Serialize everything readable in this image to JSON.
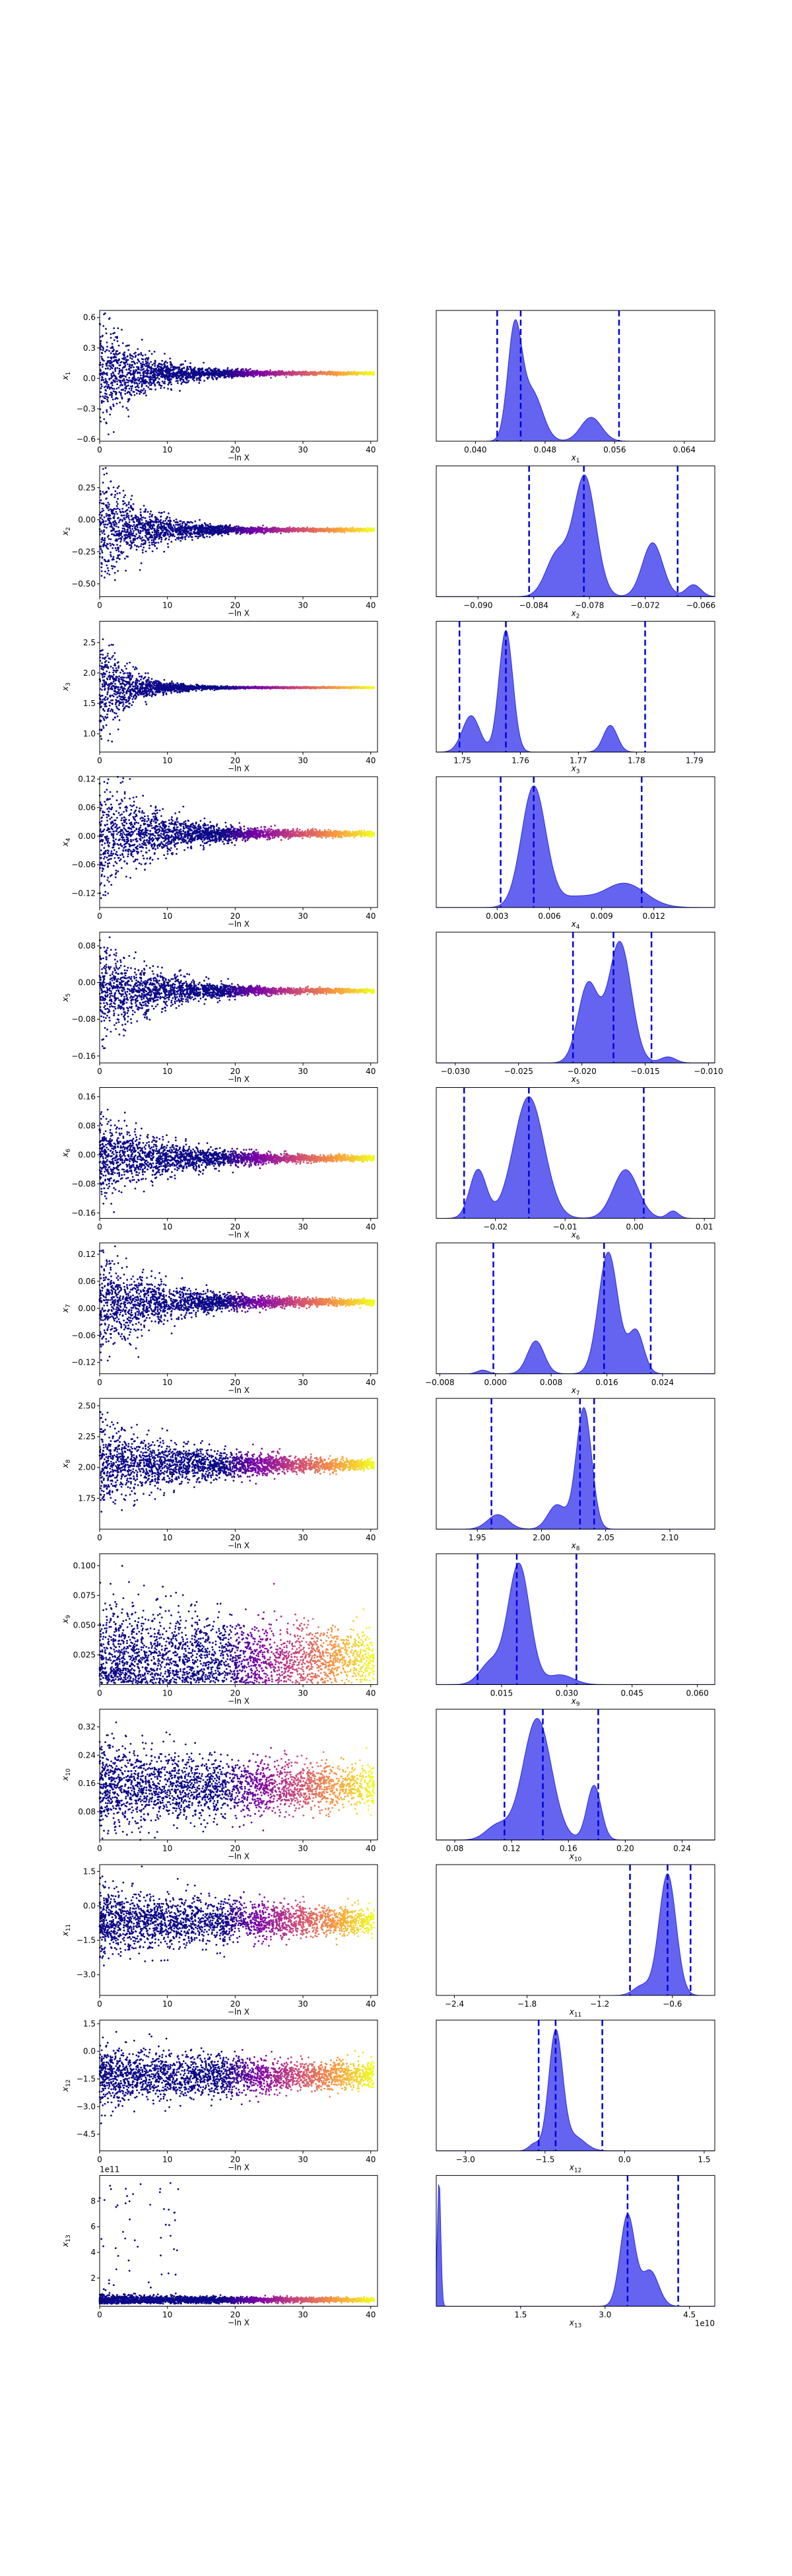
{
  "chart_data": [
    {
      "type": "scatter",
      "ylabel": "x_1",
      "xlabel": "−ln X",
      "xlim": [
        0,
        41
      ],
      "ylim": [
        -0.62,
        0.67
      ],
      "xticks": [
        "0",
        "10",
        "20",
        "30",
        "40"
      ],
      "yticks": [
        {
          "v": 0.6,
          "t": "0.6"
        },
        {
          "v": 0.3,
          "t": "0.3"
        },
        {
          "v": 0.0,
          "t": "0.0"
        },
        {
          "v": -0.3,
          "t": "−0.3"
        },
        {
          "v": -0.6,
          "t": "−0.6"
        }
      ],
      "center": 0.05,
      "spread0": 0.5,
      "decay": 6,
      "noise": 0.012
    },
    {
      "type": "scatter",
      "ylabel": "x_2",
      "xlabel": "−ln X",
      "xlim": [
        0,
        41
      ],
      "ylim": [
        -0.6,
        0.42
      ],
      "xticks": [
        "0",
        "10",
        "20",
        "30",
        "40"
      ],
      "yticks": [
        {
          "v": 0.25,
          "t": "0.25"
        },
        {
          "v": 0.0,
          "t": "0.00"
        },
        {
          "v": -0.25,
          "t": "−0.25"
        },
        {
          "v": -0.5,
          "t": "−0.50"
        }
      ],
      "center": -0.08,
      "spread0": 0.42,
      "decay": 6,
      "noise": 0.01
    },
    {
      "type": "scatter",
      "ylabel": "x_3",
      "xlabel": "−ln X",
      "xlim": [
        0,
        41
      ],
      "ylim": [
        0.7,
        2.85
      ],
      "xticks": [
        "0",
        "10",
        "20",
        "30",
        "40"
      ],
      "yticks": [
        {
          "v": 2.5,
          "t": "2.5"
        },
        {
          "v": 2.0,
          "t": "2.0"
        },
        {
          "v": 1.5,
          "t": "1.5"
        },
        {
          "v": 1.0,
          "t": "1.0"
        }
      ],
      "center": 1.76,
      "spread0": 0.8,
      "decay": 4,
      "noise": 0.01
    },
    {
      "type": "scatter",
      "ylabel": "x_4",
      "xlabel": "−ln X",
      "xlim": [
        0,
        41
      ],
      "ylim": [
        -0.15,
        0.125
      ],
      "xticks": [
        "0",
        "10",
        "20",
        "30",
        "40"
      ],
      "yticks": [
        {
          "v": 0.12,
          "t": "0.12"
        },
        {
          "v": 0.06,
          "t": "0.06"
        },
        {
          "v": 0.0,
          "t": "0.00"
        },
        {
          "v": -0.06,
          "t": "−0.06"
        },
        {
          "v": -0.12,
          "t": "−0.12"
        }
      ],
      "center": 0.005,
      "spread0": 0.11,
      "decay": 8,
      "noise": 0.004
    },
    {
      "type": "scatter",
      "ylabel": "x_5",
      "xlabel": "−ln X",
      "xlim": [
        0,
        41
      ],
      "ylim": [
        -0.175,
        0.11
      ],
      "xticks": [
        "0",
        "10",
        "20",
        "30",
        "40"
      ],
      "yticks": [
        {
          "v": 0.08,
          "t": "0.08"
        },
        {
          "v": 0.0,
          "t": "0.00"
        },
        {
          "v": -0.08,
          "t": "−0.08"
        },
        {
          "v": -0.16,
          "t": "−0.16"
        }
      ],
      "center": -0.018,
      "spread0": 0.1,
      "decay": 8,
      "noise": 0.003
    },
    {
      "type": "scatter",
      "ylabel": "x_6",
      "xlabel": "−ln X",
      "xlim": [
        0,
        41
      ],
      "ylim": [
        -0.175,
        0.185
      ],
      "xticks": [
        "0",
        "10",
        "20",
        "30",
        "40"
      ],
      "yticks": [
        {
          "v": 0.16,
          "t": "0.16"
        },
        {
          "v": 0.08,
          "t": "0.08"
        },
        {
          "v": 0.0,
          "t": "0.00"
        },
        {
          "v": -0.08,
          "t": "−0.08"
        },
        {
          "v": -0.16,
          "t": "−0.16"
        }
      ],
      "center": -0.01,
      "spread0": 0.1,
      "decay": 10,
      "noise": 0.005
    },
    {
      "type": "scatter",
      "ylabel": "x_7",
      "xlabel": "−ln X",
      "xlim": [
        0,
        41
      ],
      "ylim": [
        -0.145,
        0.145
      ],
      "xticks": [
        "0",
        "10",
        "20",
        "30",
        "40"
      ],
      "yticks": [
        {
          "v": 0.12,
          "t": "0.12"
        },
        {
          "v": 0.06,
          "t": "0.06"
        },
        {
          "v": 0.0,
          "t": "0.00"
        },
        {
          "v": -0.06,
          "t": "−0.06"
        },
        {
          "v": -0.12,
          "t": "−0.12"
        }
      ],
      "center": 0.014,
      "spread0": 0.1,
      "decay": 9,
      "noise": 0.005
    },
    {
      "type": "scatter",
      "ylabel": "x_8",
      "xlabel": "−ln X",
      "xlim": [
        0,
        41
      ],
      "ylim": [
        1.5,
        2.56
      ],
      "xticks": [
        "0",
        "10",
        "20",
        "30",
        "40"
      ],
      "yticks": [
        {
          "v": 2.5,
          "t": "2.50"
        },
        {
          "v": 2.25,
          "t": "2.25"
        },
        {
          "v": 2.0,
          "t": "2.00"
        },
        {
          "v": 1.75,
          "t": "1.75"
        }
      ],
      "center": 2.02,
      "spread0": 0.3,
      "decay": 14,
      "noise": 0.02
    },
    {
      "type": "scatter",
      "ylabel": "x_9",
      "xlabel": "−ln X",
      "xlim": [
        0,
        41
      ],
      "ylim": [
        0.0,
        0.11
      ],
      "xticks": [
        "0",
        "10",
        "20",
        "30",
        "40"
      ],
      "yticks": [
        {
          "v": 0.1,
          "t": "0.100"
        },
        {
          "v": 0.075,
          "t": "0.075"
        },
        {
          "v": 0.05,
          "t": "0.050"
        },
        {
          "v": 0.025,
          "t": "0.025"
        }
      ],
      "center": 0.022,
      "spread0": 0.04,
      "decay": 40,
      "noise": 0.006,
      "lowerbound": 0.001
    },
    {
      "type": "scatter",
      "ylabel": "x_10",
      "xlabel": "−ln X",
      "xlim": [
        0,
        41
      ],
      "ylim": [
        0.0,
        0.37
      ],
      "xticks": [
        "0",
        "10",
        "20",
        "30",
        "40"
      ],
      "yticks": [
        {
          "v": 0.32,
          "t": "0.32"
        },
        {
          "v": 0.24,
          "t": "0.24"
        },
        {
          "v": 0.16,
          "t": "0.16"
        },
        {
          "v": 0.08,
          "t": "0.08"
        }
      ],
      "center": 0.15,
      "spread0": 0.09,
      "decay": 40,
      "noise": 0.02
    },
    {
      "type": "scatter",
      "ylabel": "x_11",
      "xlabel": "−ln X",
      "xlim": [
        0,
        41
      ],
      "ylim": [
        -3.9,
        1.8
      ],
      "xticks": [
        "0",
        "10",
        "20",
        "30",
        "40"
      ],
      "yticks": [
        {
          "v": 1.5,
          "t": "1.5"
        },
        {
          "v": 0.0,
          "t": "0.0"
        },
        {
          "v": -1.5,
          "t": "−1.5"
        },
        {
          "v": -3.0,
          "t": "−3.0"
        }
      ],
      "center": -0.65,
      "spread0": 1.2,
      "decay": 40,
      "noise": 0.08
    },
    {
      "type": "scatter",
      "ylabel": "x_12",
      "xlabel": "−ln X",
      "xlim": [
        0,
        41
      ],
      "ylim": [
        -5.4,
        1.7
      ],
      "xticks": [
        "0",
        "10",
        "20",
        "30",
        "40"
      ],
      "yticks": [
        {
          "v": 1.5,
          "t": "1.5"
        },
        {
          "v": 0.0,
          "t": "0.0"
        },
        {
          "v": -1.5,
          "t": "−1.5"
        },
        {
          "v": -3.0,
          "t": "−3.0"
        },
        {
          "v": -4.5,
          "t": "−4.5"
        }
      ],
      "center": -1.3,
      "spread0": 1.3,
      "decay": 40,
      "noise": 0.15
    },
    {
      "type": "scatter",
      "ylabel": "x_13",
      "xlabel": "−ln X",
      "xlim": [
        0,
        41
      ],
      "ylim": [
        -0.2,
        10.0
      ],
      "xticks": [
        "0",
        "10",
        "20",
        "30",
        "40"
      ],
      "yticks": [
        {
          "v": 8,
          "t": "8"
        },
        {
          "v": 6,
          "t": "6"
        },
        {
          "v": 4,
          "t": "4"
        },
        {
          "v": 2,
          "t": "2"
        }
      ],
      "offset": "1e11",
      "center": 0.3,
      "spread0": 0.3,
      "decay": 40,
      "noise": 0.03,
      "lowerbound": 0.0,
      "outliers": true
    }
  ],
  "posterior_data": [
    {
      "type": "area",
      "xlabel": "x_1",
      "xlim": [
        0.0355,
        0.0675
      ],
      "xticks": [
        {
          "v": 0.04,
          "t": "0.040"
        },
        {
          "v": 0.048,
          "t": "0.048"
        },
        {
          "v": 0.056,
          "t": "0.056"
        },
        {
          "v": 0.064,
          "t": "0.064"
        }
      ],
      "vlines": [
        0.0425,
        0.0452,
        0.0565
      ],
      "peaks": [
        [
          0.0445,
          1.0,
          0.0008
        ],
        [
          0.0465,
          0.45,
          0.0012
        ],
        [
          0.0533,
          0.22,
          0.0012
        ]
      ]
    },
    {
      "type": "area",
      "xlabel": "x_2",
      "xlim": [
        -0.0945,
        -0.0645
      ],
      "xticks": [
        {
          "v": -0.09,
          "t": "−0.090"
        },
        {
          "v": -0.084,
          "t": "−0.084"
        },
        {
          "v": -0.078,
          "t": "−0.078"
        },
        {
          "v": -0.072,
          "t": "−0.072"
        },
        {
          "v": -0.066,
          "t": "−0.066"
        }
      ],
      "vlines": [
        -0.0845,
        -0.0786,
        -0.0685
      ],
      "peaks": [
        [
          -0.0785,
          1.0,
          0.0012
        ],
        [
          -0.0815,
          0.35,
          0.0012
        ],
        [
          -0.0712,
          0.45,
          0.0011
        ],
        [
          -0.0668,
          0.1,
          0.0008
        ]
      ]
    },
    {
      "type": "area",
      "xlabel": "x_3",
      "xlim": [
        1.7455,
        1.7935
      ],
      "xticks": [
        {
          "v": 1.75,
          "t": "1.75"
        },
        {
          "v": 1.76,
          "t": "1.76"
        },
        {
          "v": 1.77,
          "t": "1.77"
        },
        {
          "v": 1.78,
          "t": "1.78"
        },
        {
          "v": 1.79,
          "t": "1.79"
        }
      ],
      "vlines": [
        1.7495,
        1.7575,
        1.7815
      ],
      "peaks": [
        [
          1.7575,
          1.0,
          0.0012
        ],
        [
          1.7515,
          0.3,
          0.0015
        ],
        [
          1.7755,
          0.22,
          0.0012
        ]
      ]
    },
    {
      "type": "area",
      "xlabel": "x_4",
      "xlim": [
        -0.0005,
        0.0155
      ],
      "xticks": [
        {
          "v": 0.003,
          "t": "0.003"
        },
        {
          "v": 0.006,
          "t": "0.006"
        },
        {
          "v": 0.009,
          "t": "0.009"
        },
        {
          "v": 0.012,
          "t": "0.012"
        }
      ],
      "vlines": [
        0.0032,
        0.0051,
        0.0113
      ],
      "peaks": [
        [
          0.0051,
          1.0,
          0.0007
        ],
        [
          0.0103,
          0.2,
          0.0012
        ],
        [
          0.0074,
          0.08,
          0.001
        ]
      ]
    },
    {
      "type": "area",
      "xlabel": "x_5",
      "xlim": [
        -0.0315,
        -0.0095
      ],
      "xticks": [
        {
          "v": -0.03,
          "t": "−0.030"
        },
        {
          "v": -0.025,
          "t": "−0.025"
        },
        {
          "v": -0.02,
          "t": "−0.020"
        },
        {
          "v": -0.015,
          "t": "−0.015"
        },
        {
          "v": -0.01,
          "t": "−0.010"
        }
      ],
      "vlines": [
        -0.0207,
        -0.0175,
        -0.0145
      ],
      "peaks": [
        [
          -0.017,
          1.0,
          0.0009
        ],
        [
          -0.0195,
          0.65,
          0.0008
        ],
        [
          -0.0132,
          0.05,
          0.0006
        ]
      ]
    },
    {
      "type": "area",
      "xlabel": "x_6",
      "xlim": [
        -0.0285,
        0.0115
      ],
      "xticks": [
        {
          "v": -0.02,
          "t": "−0.02"
        },
        {
          "v": -0.01,
          "t": "−0.01"
        },
        {
          "v": 0.0,
          "t": "0.00"
        },
        {
          "v": 0.01,
          "t": "0.01"
        }
      ],
      "vlines": [
        -0.0245,
        -0.0152,
        0.0013
      ],
      "peaks": [
        [
          -0.0152,
          1.0,
          0.0022
        ],
        [
          -0.0225,
          0.4,
          0.0012
        ],
        [
          -0.0013,
          0.4,
          0.0018
        ],
        [
          0.0055,
          0.06,
          0.0008
        ]
      ]
    },
    {
      "type": "area",
      "xlabel": "x_7",
      "xlim": [
        -0.0085,
        0.0315
      ],
      "xticks": [
        {
          "v": -0.008,
          "t": "−0.008"
        },
        {
          "v": 0.0,
          "t": "0.000"
        },
        {
          "v": 0.008,
          "t": "0.008"
        },
        {
          "v": 0.016,
          "t": "0.016"
        },
        {
          "v": 0.024,
          "t": "0.024"
        }
      ],
      "vlines": [
        -0.0003,
        0.0156,
        0.0223
      ],
      "peaks": [
        [
          0.0162,
          1.0,
          0.0014
        ],
        [
          0.0058,
          0.27,
          0.0012
        ],
        [
          0.0202,
          0.35,
          0.0011
        ],
        [
          -0.0018,
          0.03,
          0.0008
        ]
      ]
    },
    {
      "type": "area",
      "xlabel": "x_8",
      "xlim": [
        1.918,
        2.135
      ],
      "xticks": [
        {
          "v": 1.95,
          "t": "1.95"
        },
        {
          "v": 2.0,
          "t": "2.00"
        },
        {
          "v": 2.05,
          "t": "2.05"
        },
        {
          "v": 2.1,
          "t": "2.10"
        }
      ],
      "vlines": [
        1.961,
        2.03,
        2.041
      ],
      "peaks": [
        [
          2.033,
          1.0,
          0.006
        ],
        [
          1.966,
          0.12,
          0.008
        ],
        [
          2.012,
          0.2,
          0.007
        ]
      ]
    },
    {
      "type": "area",
      "xlabel": "x_9",
      "xlim": [
        0.0,
        0.064
      ],
      "xticks": [
        {
          "v": 0.015,
          "t": "0.015"
        },
        {
          "v": 0.03,
          "t": "0.030"
        },
        {
          "v": 0.045,
          "t": "0.045"
        },
        {
          "v": 0.06,
          "t": "0.060"
        }
      ],
      "vlines": [
        0.0095,
        0.0185,
        0.0322
      ],
      "peaks": [
        [
          0.019,
          1.0,
          0.0025
        ],
        [
          0.0125,
          0.18,
          0.0025
        ],
        [
          0.0285,
          0.08,
          0.003
        ]
      ]
    },
    {
      "type": "area",
      "xlabel": "x_10",
      "xlim": [
        0.067,
        0.263
      ],
      "xticks": [
        {
          "v": 0.08,
          "t": "0.08"
        },
        {
          "v": 0.12,
          "t": "0.12"
        },
        {
          "v": 0.16,
          "t": "0.16"
        },
        {
          "v": 0.2,
          "t": "0.20"
        },
        {
          "v": 0.24,
          "t": "0.24"
        }
      ],
      "vlines": [
        0.115,
        0.142,
        0.181
      ],
      "peaks": [
        [
          0.138,
          1.0,
          0.01
        ],
        [
          0.178,
          0.45,
          0.005
        ],
        [
          0.11,
          0.12,
          0.008
        ]
      ]
    },
    {
      "type": "area",
      "xlabel": "x_11",
      "xlim": [
        -2.55,
        -0.25
      ],
      "xticks": [
        {
          "v": -2.4,
          "t": "−2.4"
        },
        {
          "v": -1.8,
          "t": "−1.8"
        },
        {
          "v": -1.2,
          "t": "−1.2"
        },
        {
          "v": -0.6,
          "t": "−0.6"
        }
      ],
      "vlines": [
        -0.95,
        -0.64,
        -0.45
      ],
      "peaks": [
        [
          -0.64,
          1.0,
          0.07
        ],
        [
          -0.85,
          0.08,
          0.07
        ]
      ]
    },
    {
      "type": "area",
      "xlabel": "x_12",
      "xlim": [
        -3.55,
        1.7
      ],
      "xticks": [
        {
          "v": -3.0,
          "t": "−3.0"
        },
        {
          "v": -1.5,
          "t": "−1.5"
        },
        {
          "v": 0.0,
          "t": "0.0"
        },
        {
          "v": 1.5,
          "t": "1.5"
        }
      ],
      "vlines": [
        -1.62,
        -1.3,
        -0.42
      ],
      "peaks": [
        [
          -1.3,
          1.0,
          0.13
        ],
        [
          -0.95,
          0.12,
          0.2
        ],
        [
          -1.7,
          0.06,
          0.1
        ]
      ]
    },
    {
      "type": "area",
      "xlabel": "x_13",
      "xlim": [
        0.0,
        4.95
      ],
      "xticks": [
        {
          "v": 1.5,
          "t": "1.5"
        },
        {
          "v": 3.0,
          "t": "3.0"
        },
        {
          "v": 4.5,
          "t": "4.5"
        }
      ],
      "offset": "1e10",
      "vlines": [
        3.4,
        4.3
      ],
      "peaks": [
        [
          3.4,
          0.72,
          0.13
        ],
        [
          3.8,
          0.28,
          0.15
        ],
        [
          0.05,
          1.0,
          0.03
        ]
      ]
    }
  ],
  "colors": {
    "density": "#5c5cf0",
    "density_edge": "#2a2ae0",
    "vline": "#0000dd",
    "scatter_low": "#0d0887",
    "scatter_mid": "#cc4778",
    "scatter_high": "#f0f921"
  }
}
